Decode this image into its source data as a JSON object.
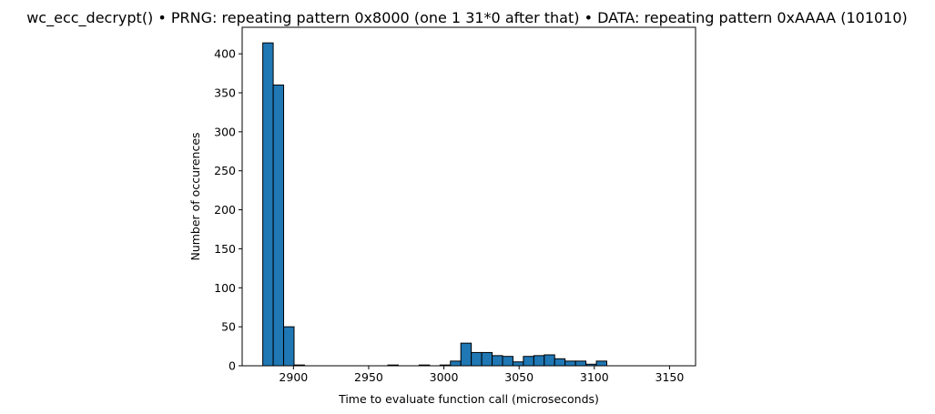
{
  "chart_data": {
    "type": "bar",
    "title": "wc_ecc_decrypt() • PRNG: repeating pattern 0x8000 (one 1 31*0 after that) • DATA: repeating pattern 0xAAAA (101010)",
    "xlabel": "Time to evaluate function call (microseconds)",
    "ylabel": "Number of occurences",
    "xlim": [
      2865.9,
      3167.3
    ],
    "ylim": [
      0,
      434
    ],
    "xticks": [
      2900,
      2950,
      3000,
      3050,
      3100,
      3150
    ],
    "yticks": [
      0,
      50,
      100,
      150,
      200,
      250,
      300,
      350,
      400
    ],
    "grid": false,
    "legend": "none",
    "bar_color": "#1f77b4",
    "edge_color": "#000000",
    "bins": {
      "start": 2879.6,
      "width": 6.93,
      "counts": [
        414,
        360,
        50,
        1,
        0,
        0,
        0,
        0,
        0,
        0,
        0,
        0,
        1,
        0,
        0,
        1,
        0,
        1,
        6,
        29,
        17,
        17,
        13,
        12,
        5,
        12,
        13,
        14,
        9,
        6,
        6,
        2,
        6
      ]
    }
  }
}
